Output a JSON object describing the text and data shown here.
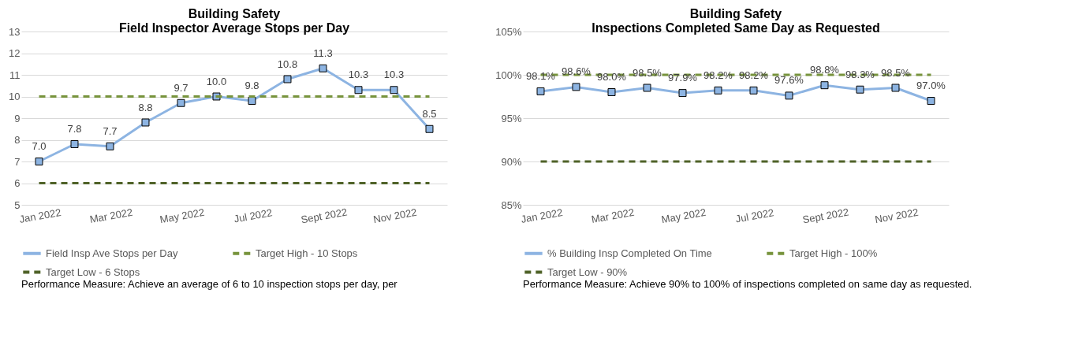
{
  "chart_data": [
    {
      "type": "line",
      "title": "Building Safety\nField Inspector Average Stops per Day",
      "categories": [
        "Jan 2022",
        null,
        "Mar 2022",
        null,
        "May 2022",
        null,
        "Jul 2022",
        null,
        "Sept 2022",
        null,
        "Nov 2022",
        null
      ],
      "series": [
        {
          "name": "Field Insp Ave Stops per Day",
          "color": "#8db4e2",
          "marker": "square",
          "line_style": "solid",
          "values": [
            7.0,
            7.8,
            7.7,
            8.8,
            9.7,
            10.0,
            9.8,
            10.8,
            11.3,
            10.3,
            10.3,
            8.5
          ],
          "value_labels": [
            "7.0",
            "7.8",
            "7.7",
            "8.8",
            "9.7",
            "10.0",
            "9.8",
            "10.8",
            "11.3",
            "10.3",
            "10.3",
            "8.5"
          ]
        },
        {
          "name": "Target Low - 6 Stops",
          "color": "#4f6228",
          "marker": "none",
          "line_style": "dashed",
          "values": [
            6,
            6,
            6,
            6,
            6,
            6,
            6,
            6,
            6,
            6,
            6,
            6
          ]
        },
        {
          "name": "Target High - 10 Stops",
          "color": "#77933c",
          "marker": "none",
          "line_style": "dashed",
          "values": [
            10,
            10,
            10,
            10,
            10,
            10,
            10,
            10,
            10,
            10,
            10,
            10
          ]
        }
      ],
      "ylim": [
        5,
        13
      ],
      "yticks": [
        5,
        6,
        7,
        8,
        9,
        10,
        11,
        12,
        13
      ],
      "grid": "y",
      "legend": "bottom",
      "annotations": [
        "Performance Measure: Achieve an average of 6 to 10 inspection stops per day, per"
      ]
    },
    {
      "type": "line",
      "title": "Building Safety\nInspections Completed Same Day as Requested",
      "categories": [
        "Jan 2022",
        null,
        "Mar 2022",
        null,
        "May 2022",
        null,
        "Jul 2022",
        null,
        "Sept 2022",
        null,
        "Nov 2022",
        null
      ],
      "series": [
        {
          "name": "% Building Insp Completed On Time",
          "color": "#8db4e2",
          "marker": "square",
          "line_style": "solid",
          "values": [
            98.1,
            98.6,
            98.0,
            98.5,
            97.9,
            98.2,
            98.2,
            97.6,
            98.8,
            98.3,
            98.5,
            97.0
          ],
          "value_labels": [
            "98.1%",
            "98.6%",
            "98.0%",
            "98.5%",
            "97.9%",
            "98.2%",
            "98.2%",
            "97.6%",
            "98.8%",
            "98.3%",
            "98.5%",
            "97.0%"
          ]
        },
        {
          "name": "Target Low - 90%",
          "color": "#4f6228",
          "marker": "none",
          "line_style": "dashed",
          "values": [
            90,
            90,
            90,
            90,
            90,
            90,
            90,
            90,
            90,
            90,
            90,
            90
          ]
        },
        {
          "name": "Target High - 100%",
          "color": "#77933c",
          "marker": "none",
          "line_style": "dashed",
          "values": [
            100,
            100,
            100,
            100,
            100,
            100,
            100,
            100,
            100,
            100,
            100,
            100
          ]
        }
      ],
      "ylim": [
        85,
        105
      ],
      "yticks": [
        {
          "value": 85,
          "label": "85%"
        },
        {
          "value": 90,
          "label": "90%"
        },
        {
          "value": 95,
          "label": "95%"
        },
        {
          "value": 100,
          "label": "100%"
        },
        {
          "value": 105,
          "label": "105%"
        }
      ],
      "grid": "y",
      "legend": "bottom",
      "annotations": [
        "Performance Measure: Achieve 90% to 100% of inspections completed on same day as requested."
      ]
    }
  ]
}
